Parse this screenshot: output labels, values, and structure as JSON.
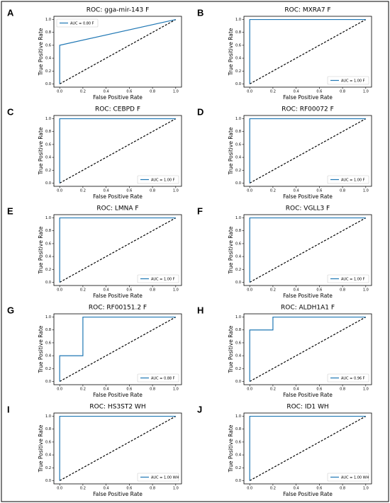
{
  "chart_data": [
    {
      "type": "line",
      "panel": "A",
      "title": "ROC: gga-mir-143 F",
      "xlabel": "False Positive Rate",
      "ylabel": "True Positive Rate",
      "legend": "upper left",
      "xlim": [
        -0.05,
        1.05
      ],
      "ylim": [
        -0.05,
        1.05
      ],
      "xticks": [
        {
          "value": 0,
          "label": "0.0"
        },
        {
          "value": 0.2,
          "label": "0.2"
        },
        {
          "value": 0.4,
          "label": "0.4"
        },
        {
          "value": 0.6,
          "label": "0.6"
        },
        {
          "value": 0.8,
          "label": "0.8"
        },
        {
          "value": 1,
          "label": "1.0"
        }
      ],
      "yticks": [
        {
          "value": 0,
          "label": "0.0"
        },
        {
          "value": 0.2,
          "label": "0.2"
        },
        {
          "value": 0.4,
          "label": "0.4"
        },
        {
          "value": 0.6,
          "label": "0.6"
        },
        {
          "value": 0.8,
          "label": "0.8"
        },
        {
          "value": 1,
          "label": "1.0"
        }
      ],
      "series": [
        {
          "name": "AUC = 0.80 F",
          "color": "#1f77b4",
          "x": [
            0,
            0,
            1
          ],
          "values": [
            0,
            0.6,
            1
          ]
        }
      ],
      "reference_line": {
        "color": "#000000",
        "x": [
          0,
          1
        ],
        "values": [
          0,
          1
        ]
      }
    },
    {
      "type": "line",
      "panel": "B",
      "title": "ROC: MXRA7 F",
      "xlabel": "False Positive Rate",
      "ylabel": "True Positive Rate",
      "legend": "lower right",
      "xlim": [
        -0.05,
        1.05
      ],
      "ylim": [
        -0.05,
        1.05
      ],
      "xticks": [
        {
          "value": 0,
          "label": "0.0"
        },
        {
          "value": 0.2,
          "label": "0.2"
        },
        {
          "value": 0.4,
          "label": "0.4"
        },
        {
          "value": 0.6,
          "label": "0.6"
        },
        {
          "value": 0.8,
          "label": "0.8"
        },
        {
          "value": 1,
          "label": "1.0"
        }
      ],
      "yticks": [
        {
          "value": 0,
          "label": "0.0"
        },
        {
          "value": 0.2,
          "label": "0.2"
        },
        {
          "value": 0.4,
          "label": "0.4"
        },
        {
          "value": 0.6,
          "label": "0.6"
        },
        {
          "value": 0.8,
          "label": "0.8"
        },
        {
          "value": 1,
          "label": "1.0"
        }
      ],
      "series": [
        {
          "name": "AUC = 1.00 F",
          "color": "#1f77b4",
          "x": [
            0,
            0,
            1
          ],
          "values": [
            0,
            1,
            1
          ]
        }
      ],
      "reference_line": {
        "color": "#000000",
        "x": [
          0,
          1
        ],
        "values": [
          0,
          1
        ]
      }
    },
    {
      "type": "line",
      "panel": "C",
      "title": "ROC: CEBPD F",
      "xlabel": "False Positive Rate",
      "ylabel": "True Positive Rate",
      "legend": "lower right",
      "xlim": [
        -0.05,
        1.05
      ],
      "ylim": [
        -0.05,
        1.05
      ],
      "xticks": [
        {
          "value": 0,
          "label": "0.0"
        },
        {
          "value": 0.2,
          "label": "0.2"
        },
        {
          "value": 0.4,
          "label": "0.4"
        },
        {
          "value": 0.6,
          "label": "0.6"
        },
        {
          "value": 0.8,
          "label": "0.8"
        },
        {
          "value": 1,
          "label": "1.0"
        }
      ],
      "yticks": [
        {
          "value": 0,
          "label": "0.0"
        },
        {
          "value": 0.2,
          "label": "0.2"
        },
        {
          "value": 0.4,
          "label": "0.4"
        },
        {
          "value": 0.6,
          "label": "0.6"
        },
        {
          "value": 0.8,
          "label": "0.8"
        },
        {
          "value": 1,
          "label": "1.0"
        }
      ],
      "series": [
        {
          "name": "AUC = 1.00 F",
          "color": "#1f77b4",
          "x": [
            0,
            0,
            1
          ],
          "values": [
            0,
            1,
            1
          ]
        }
      ],
      "reference_line": {
        "color": "#000000",
        "x": [
          0,
          1
        ],
        "values": [
          0,
          1
        ]
      }
    },
    {
      "type": "line",
      "panel": "D",
      "title": "ROC: RF00072 F",
      "xlabel": "False Positive Rate",
      "ylabel": "True Positive Rate",
      "legend": "lower right",
      "xlim": [
        -0.05,
        1.05
      ],
      "ylim": [
        -0.05,
        1.05
      ],
      "xticks": [
        {
          "value": 0,
          "label": "0.0"
        },
        {
          "value": 0.2,
          "label": "0.2"
        },
        {
          "value": 0.4,
          "label": "0.4"
        },
        {
          "value": 0.6,
          "label": "0.6"
        },
        {
          "value": 0.8,
          "label": "0.8"
        },
        {
          "value": 1,
          "label": "1.0"
        }
      ],
      "yticks": [
        {
          "value": 0,
          "label": "0.0"
        },
        {
          "value": 0.2,
          "label": "0.2"
        },
        {
          "value": 0.4,
          "label": "0.4"
        },
        {
          "value": 0.6,
          "label": "0.6"
        },
        {
          "value": 0.8,
          "label": "0.8"
        },
        {
          "value": 1,
          "label": "1.0"
        }
      ],
      "series": [
        {
          "name": "AUC = 1.00 F",
          "color": "#1f77b4",
          "x": [
            0,
            0,
            1
          ],
          "values": [
            0,
            1,
            1
          ]
        }
      ],
      "reference_line": {
        "color": "#000000",
        "x": [
          0,
          1
        ],
        "values": [
          0,
          1
        ]
      }
    },
    {
      "type": "line",
      "panel": "E",
      "title": "ROC: LMNA F",
      "xlabel": "False Positive Rate",
      "ylabel": "True Positive Rate",
      "legend": "lower right",
      "xlim": [
        -0.05,
        1.05
      ],
      "ylim": [
        -0.05,
        1.05
      ],
      "xticks": [
        {
          "value": 0,
          "label": "0.0"
        },
        {
          "value": 0.2,
          "label": "0.2"
        },
        {
          "value": 0.4,
          "label": "0.4"
        },
        {
          "value": 0.6,
          "label": "0.6"
        },
        {
          "value": 0.8,
          "label": "0.8"
        },
        {
          "value": 1,
          "label": "1.0"
        }
      ],
      "yticks": [
        {
          "value": 0,
          "label": "0.0"
        },
        {
          "value": 0.2,
          "label": "0.2"
        },
        {
          "value": 0.4,
          "label": "0.4"
        },
        {
          "value": 0.6,
          "label": "0.6"
        },
        {
          "value": 0.8,
          "label": "0.8"
        },
        {
          "value": 1,
          "label": "1.0"
        }
      ],
      "series": [
        {
          "name": "AUC = 1.00 F",
          "color": "#1f77b4",
          "x": [
            0,
            0,
            1
          ],
          "values": [
            0,
            1,
            1
          ]
        }
      ],
      "reference_line": {
        "color": "#000000",
        "x": [
          0,
          1
        ],
        "values": [
          0,
          1
        ]
      }
    },
    {
      "type": "line",
      "panel": "F",
      "title": "ROC: VGLL3 F",
      "xlabel": "False Positive Rate",
      "ylabel": "True Positive Rate",
      "legend": "lower right",
      "xlim": [
        -0.05,
        1.05
      ],
      "ylim": [
        -0.05,
        1.05
      ],
      "xticks": [
        {
          "value": 0,
          "label": "0.0"
        },
        {
          "value": 0.2,
          "label": "0.2"
        },
        {
          "value": 0.4,
          "label": "0.4"
        },
        {
          "value": 0.6,
          "label": "0.6"
        },
        {
          "value": 0.8,
          "label": "0.8"
        },
        {
          "value": 1,
          "label": "1.0"
        }
      ],
      "yticks": [
        {
          "value": 0,
          "label": "0.0"
        },
        {
          "value": 0.2,
          "label": "0.2"
        },
        {
          "value": 0.4,
          "label": "0.4"
        },
        {
          "value": 0.6,
          "label": "0.6"
        },
        {
          "value": 0.8,
          "label": "0.8"
        },
        {
          "value": 1,
          "label": "1.0"
        }
      ],
      "series": [
        {
          "name": "AUC = 1.00 F",
          "color": "#1f77b4",
          "x": [
            0,
            0,
            1
          ],
          "values": [
            0,
            1,
            1
          ]
        }
      ],
      "reference_line": {
        "color": "#000000",
        "x": [
          0,
          1
        ],
        "values": [
          0,
          1
        ]
      }
    },
    {
      "type": "line",
      "panel": "G",
      "title": "ROC: RF00151.2 F",
      "xlabel": "False Positive Rate",
      "ylabel": "True Positive Rate",
      "legend": "lower right",
      "xlim": [
        -0.05,
        1.05
      ],
      "ylim": [
        -0.05,
        1.05
      ],
      "xticks": [
        {
          "value": 0,
          "label": "0.0"
        },
        {
          "value": 0.2,
          "label": "0.2"
        },
        {
          "value": 0.4,
          "label": "0.4"
        },
        {
          "value": 0.6,
          "label": "0.6"
        },
        {
          "value": 0.8,
          "label": "0.8"
        },
        {
          "value": 1,
          "label": "1.0"
        }
      ],
      "yticks": [
        {
          "value": 0,
          "label": "0.0"
        },
        {
          "value": 0.2,
          "label": "0.2"
        },
        {
          "value": 0.4,
          "label": "0.4"
        },
        {
          "value": 0.6,
          "label": "0.6"
        },
        {
          "value": 0.8,
          "label": "0.8"
        },
        {
          "value": 1,
          "label": "1.0"
        }
      ],
      "series": [
        {
          "name": "AUC = 0.88 F",
          "color": "#1f77b4",
          "x": [
            0,
            0,
            0.2,
            0.2,
            1
          ],
          "values": [
            0,
            0.4,
            0.4,
            1,
            1
          ]
        }
      ],
      "reference_line": {
        "color": "#000000",
        "x": [
          0,
          1
        ],
        "values": [
          0,
          1
        ]
      }
    },
    {
      "type": "line",
      "panel": "H",
      "title": "ROC: ALDH1A1 F",
      "xlabel": "False Positive Rate",
      "ylabel": "True Positive Rate",
      "legend": "lower right",
      "xlim": [
        -0.05,
        1.05
      ],
      "ylim": [
        -0.05,
        1.05
      ],
      "xticks": [
        {
          "value": 0,
          "label": "0.0"
        },
        {
          "value": 0.2,
          "label": "0.2"
        },
        {
          "value": 0.4,
          "label": "0.4"
        },
        {
          "value": 0.6,
          "label": "0.6"
        },
        {
          "value": 0.8,
          "label": "0.8"
        },
        {
          "value": 1,
          "label": "1.0"
        }
      ],
      "yticks": [
        {
          "value": 0,
          "label": "0.0"
        },
        {
          "value": 0.2,
          "label": "0.2"
        },
        {
          "value": 0.4,
          "label": "0.4"
        },
        {
          "value": 0.6,
          "label": "0.6"
        },
        {
          "value": 0.8,
          "label": "0.8"
        },
        {
          "value": 1,
          "label": "1.0"
        }
      ],
      "series": [
        {
          "name": "AUC = 0.96 F",
          "color": "#1f77b4",
          "x": [
            0,
            0,
            0.2,
            0.2,
            1
          ],
          "values": [
            0,
            0.8,
            0.8,
            1,
            1
          ]
        }
      ],
      "reference_line": {
        "color": "#000000",
        "x": [
          0,
          1
        ],
        "values": [
          0,
          1
        ]
      }
    },
    {
      "type": "line",
      "panel": "I",
      "title": "ROC: HS3ST2 WH",
      "xlabel": "False Positive Rate",
      "ylabel": "True Positive Rate",
      "legend": "lower right",
      "xlim": [
        -0.05,
        1.05
      ],
      "ylim": [
        -0.05,
        1.05
      ],
      "xticks": [
        {
          "value": 0,
          "label": "0.0"
        },
        {
          "value": 0.2,
          "label": "0.2"
        },
        {
          "value": 0.4,
          "label": "0.4"
        },
        {
          "value": 0.6,
          "label": "0.6"
        },
        {
          "value": 0.8,
          "label": "0.8"
        },
        {
          "value": 1,
          "label": "1.0"
        }
      ],
      "yticks": [
        {
          "value": 0,
          "label": "0.0"
        },
        {
          "value": 0.2,
          "label": "0.2"
        },
        {
          "value": 0.4,
          "label": "0.4"
        },
        {
          "value": 0.6,
          "label": "0.6"
        },
        {
          "value": 0.8,
          "label": "0.8"
        },
        {
          "value": 1,
          "label": "1.0"
        }
      ],
      "series": [
        {
          "name": "AUC = 1.00 WH",
          "color": "#1f77b4",
          "x": [
            0,
            0,
            1
          ],
          "values": [
            0,
            1,
            1
          ]
        }
      ],
      "reference_line": {
        "color": "#000000",
        "x": [
          0,
          1
        ],
        "values": [
          0,
          1
        ]
      }
    },
    {
      "type": "line",
      "panel": "J",
      "title": "ROC: ID1 WH",
      "xlabel": "False Positive Rate",
      "ylabel": "True Positive Rate",
      "legend": "lower right",
      "xlim": [
        -0.05,
        1.05
      ],
      "ylim": [
        -0.05,
        1.05
      ],
      "xticks": [
        {
          "value": 0,
          "label": "0.0"
        },
        {
          "value": 0.2,
          "label": "0.2"
        },
        {
          "value": 0.4,
          "label": "0.4"
        },
        {
          "value": 0.6,
          "label": "0.6"
        },
        {
          "value": 0.8,
          "label": "0.8"
        },
        {
          "value": 1,
          "label": "1.0"
        }
      ],
      "yticks": [
        {
          "value": 0,
          "label": "0.0"
        },
        {
          "value": 0.2,
          "label": "0.2"
        },
        {
          "value": 0.4,
          "label": "0.4"
        },
        {
          "value": 0.6,
          "label": "0.6"
        },
        {
          "value": 0.8,
          "label": "0.8"
        },
        {
          "value": 1,
          "label": "1.0"
        }
      ],
      "series": [
        {
          "name": "AUC = 1.00 WH",
          "color": "#1f77b4",
          "x": [
            0,
            0,
            1
          ],
          "values": [
            0,
            1,
            1
          ]
        }
      ],
      "reference_line": {
        "color": "#000000",
        "x": [
          0,
          1
        ],
        "values": [
          0,
          1
        ]
      }
    }
  ]
}
